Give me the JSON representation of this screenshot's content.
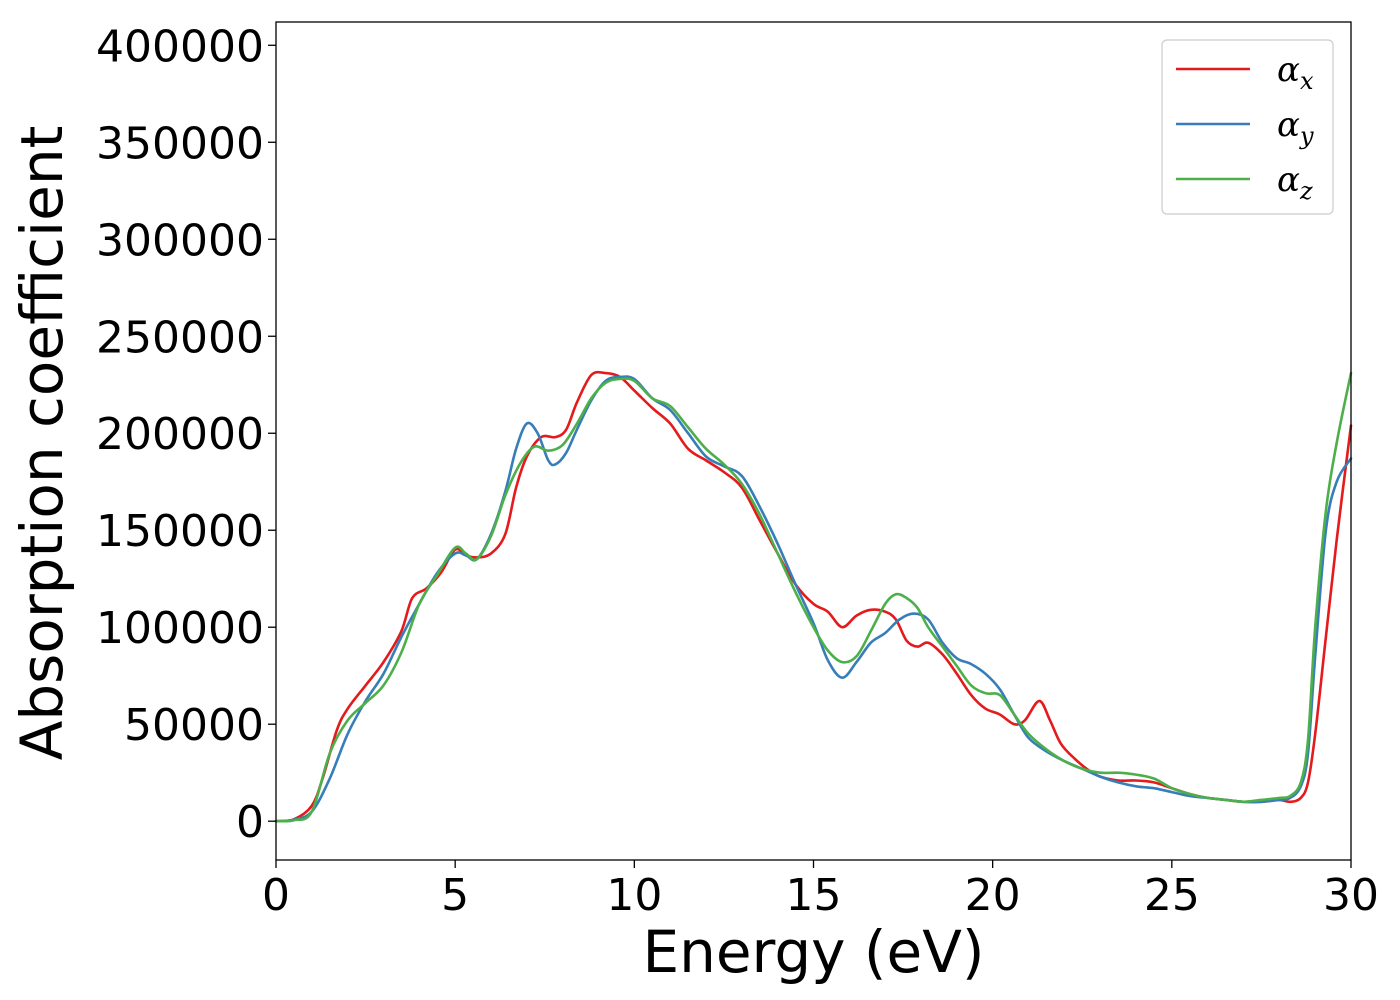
{
  "chart_data": {
    "type": "line",
    "xlabel": "Energy (eV)",
    "ylabel": "Absorption coefficient",
    "xlim": [
      0,
      30
    ],
    "ylim": [
      -20000,
      412000
    ],
    "xticks": [
      0,
      5,
      10,
      15,
      20,
      25,
      30
    ],
    "yticks": [
      0,
      50000,
      100000,
      150000,
      200000,
      250000,
      300000,
      350000,
      400000
    ],
    "grid": false,
    "legend_position": "top-right",
    "series": [
      {
        "name": "α",
        "subscript": "x",
        "color": "#e41a1c",
        "x": [
          0,
          0.5,
          1,
          1.3,
          1.7,
          2,
          2.5,
          3,
          3.5,
          3.8,
          4.2,
          4.6,
          5,
          5.3,
          5.6,
          6,
          6.4,
          6.7,
          7,
          7.4,
          7.8,
          8.1,
          8.4,
          8.8,
          9.2,
          9.6,
          10,
          10.5,
          11,
          11.5,
          12,
          12.5,
          13,
          13.5,
          14,
          14.5,
          15,
          15.4,
          15.8,
          16.2,
          16.6,
          17,
          17.3,
          17.6,
          17.9,
          18.2,
          18.6,
          19,
          19.4,
          19.8,
          20.2,
          20.6,
          20.9,
          21.3,
          21.6,
          21.9,
          22.3,
          22.7,
          23,
          23.5,
          24,
          24.5,
          25,
          25.5,
          26,
          26.5,
          27,
          27.5,
          28,
          28.3,
          28.6,
          28.8,
          29,
          29.3,
          29.6,
          30
        ],
        "y": [
          0,
          1000,
          8000,
          22000,
          47000,
          58000,
          70000,
          82000,
          98000,
          115000,
          120000,
          128000,
          140000,
          137000,
          136000,
          138000,
          148000,
          172000,
          188000,
          198000,
          198000,
          202000,
          216000,
          230000,
          231000,
          229000,
          222000,
          213000,
          205000,
          192000,
          186000,
          180000,
          172000,
          155000,
          138000,
          122000,
          112000,
          108000,
          100000,
          106000,
          109000,
          108000,
          104000,
          93000,
          90000,
          92000,
          86000,
          76000,
          65000,
          58000,
          55000,
          50000,
          52000,
          62000,
          52000,
          40000,
          32000,
          26000,
          23000,
          21000,
          21000,
          20000,
          17000,
          14000,
          12000,
          11000,
          10000,
          10000,
          11000,
          10000,
          12000,
          20000,
          45000,
          95000,
          145000,
          204000
        ]
      },
      {
        "name": "α",
        "subscript": "y",
        "color": "#377eb8",
        "x": [
          0,
          0.5,
          1,
          1.5,
          2,
          2.5,
          3,
          3.5,
          4,
          4.5,
          5,
          5.3,
          5.6,
          6,
          6.4,
          6.7,
          7,
          7.3,
          7.6,
          7.8,
          8.1,
          8.4,
          8.8,
          9.2,
          9.6,
          10,
          10.5,
          11,
          11.5,
          12,
          12.5,
          13,
          13.5,
          14,
          14.5,
          15,
          15.4,
          15.8,
          16.2,
          16.6,
          17,
          17.4,
          17.8,
          18.2,
          18.6,
          19,
          19.4,
          19.8,
          20.2,
          20.6,
          21,
          21.5,
          22,
          22.5,
          23,
          23.5,
          24,
          24.5,
          25,
          25.5,
          26,
          26.5,
          27,
          27.5,
          28,
          28.3,
          28.6,
          28.8,
          29,
          29.3,
          29.6,
          30
        ],
        "y": [
          0,
          800,
          5000,
          22000,
          45000,
          62000,
          76000,
          95000,
          112000,
          128000,
          138000,
          137000,
          135000,
          148000,
          170000,
          192000,
          205000,
          200000,
          186000,
          184000,
          190000,
          202000,
          217000,
          227000,
          229000,
          228000,
          218000,
          212000,
          200000,
          188000,
          183000,
          178000,
          162000,
          143000,
          122000,
          102000,
          83000,
          74000,
          82000,
          92000,
          97000,
          104000,
          107000,
          104000,
          92000,
          84000,
          81000,
          76000,
          68000,
          55000,
          43000,
          36000,
          31000,
          27000,
          23000,
          20000,
          18000,
          17000,
          15000,
          13000,
          12000,
          11000,
          10000,
          10000,
          11000,
          12000,
          18000,
          35000,
          85000,
          150000,
          175000,
          187000
        ]
      },
      {
        "name": "α",
        "subscript": "z",
        "color": "#4daf4a",
        "x": [
          0,
          0.5,
          1,
          1.5,
          2,
          2.5,
          3,
          3.5,
          4,
          4.5,
          5,
          5.3,
          5.6,
          6,
          6.4,
          6.8,
          7.2,
          7.6,
          8,
          8.4,
          8.8,
          9.2,
          9.6,
          10,
          10.5,
          11,
          11.5,
          12,
          12.5,
          13,
          13.5,
          14,
          14.5,
          15,
          15.4,
          15.8,
          16.2,
          16.6,
          17,
          17.3,
          17.6,
          17.9,
          18.2,
          18.6,
          19,
          19.4,
          19.8,
          20.2,
          20.6,
          21,
          21.5,
          22,
          22.5,
          23,
          23.5,
          24,
          24.5,
          25,
          25.5,
          26,
          26.5,
          27,
          27.5,
          28,
          28.3,
          28.6,
          28.8,
          29,
          29.3,
          29.6,
          30
        ],
        "y": [
          0,
          500,
          5000,
          35000,
          52000,
          61000,
          70000,
          87000,
          112000,
          127000,
          141000,
          138000,
          135000,
          147000,
          168000,
          184000,
          193000,
          191000,
          194000,
          205000,
          218000,
          226000,
          228000,
          227000,
          218000,
          214000,
          203000,
          192000,
          184000,
          174000,
          158000,
          138000,
          118000,
          100000,
          88000,
          82000,
          85000,
          98000,
          112000,
          117000,
          115000,
          110000,
          100000,
          90000,
          80000,
          70000,
          66000,
          65000,
          55000,
          45000,
          37000,
          31000,
          27000,
          25000,
          25000,
          24000,
          22000,
          17000,
          14000,
          12000,
          11000,
          10000,
          11000,
          12000,
          13000,
          20000,
          42000,
          100000,
          160000,
          195000,
          231000
        ]
      }
    ]
  }
}
